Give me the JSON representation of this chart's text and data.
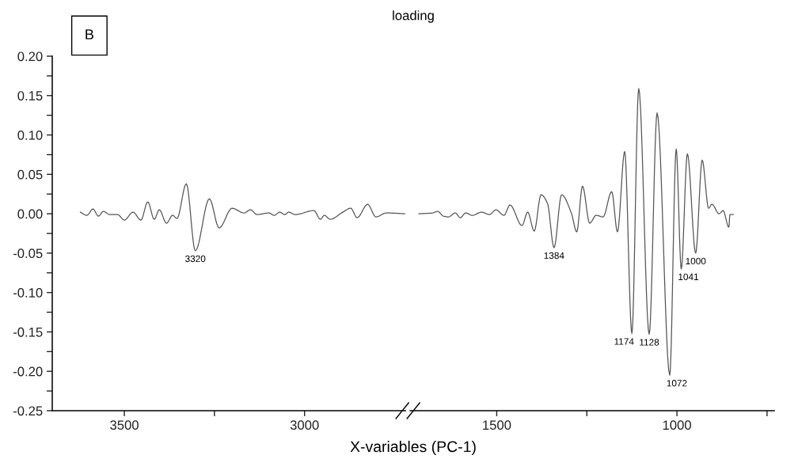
{
  "chart_data": [
    {
      "type": "line",
      "title": "loading",
      "xlabel": "X-variables (PC-1)",
      "annotations": [
        "B",
        {
          "text": "3320",
          "x": 3303,
          "y": -0.047
        }
      ],
      "xlim": [
        3700,
        2720
      ],
      "xticks": [
        3500,
        {
          "value": 3250,
          "label": null
        },
        3000
      ],
      "ylim": [
        -0.25,
        0.2
      ],
      "yticks": [
        {
          "value": 0.2,
          "label": "0.20"
        },
        {
          "value": 0.175,
          "label": null
        },
        {
          "value": 0.15,
          "label": "0.15"
        },
        {
          "value": 0.125,
          "label": null
        },
        {
          "value": 0.1,
          "label": "0.10"
        },
        {
          "value": 0.075,
          "label": null
        },
        {
          "value": 0.05,
          "label": "0.05"
        },
        {
          "value": 0.025,
          "label": null
        },
        {
          "value": 0,
          "label": "0.00"
        },
        {
          "value": -0.025,
          "label": null
        },
        {
          "value": -0.05,
          "label": "-0.05"
        },
        {
          "value": -0.075,
          "label": null
        },
        {
          "value": -0.1,
          "label": "-0.10"
        },
        {
          "value": -0.125,
          "label": null
        },
        {
          "value": -0.15,
          "label": "-0.15"
        },
        {
          "value": -0.175,
          "label": null
        },
        {
          "value": -0.2,
          "label": "-0.20"
        },
        {
          "value": -0.225,
          "label": null
        },
        {
          "value": -0.25,
          "label": "-0.25"
        }
      ],
      "series": [
        {
          "color": "#555555",
          "x": [
            3622,
            3604,
            3587,
            3572,
            3558,
            3541,
            3519,
            3500,
            3476,
            3454,
            3435,
            3417,
            3403,
            3383,
            3366,
            3354,
            3328,
            3303,
            3264,
            3237,
            3201,
            3168,
            3150,
            3132,
            3099,
            3084,
            3069,
            3055,
            3044,
            3026,
            2974,
            2956,
            2945,
            2929,
            2894,
            2872,
            2854,
            2825,
            2802,
            2773,
            2722
          ],
          "values": [
            0.002,
            -0.002,
            0.006,
            -0.003,
            0.003,
            -0.001,
            -0.001,
            -0.008,
            0.002,
            -0.008,
            0.015,
            -0.007,
            0.005,
            -0.012,
            -0.002,
            -0.006,
            0.038,
            -0.047,
            0.019,
            -0.018,
            0.007,
            0.001,
            0.005,
            -0.001,
            0.001,
            -0.002,
            0.002,
            -0.001,
            0.002,
            -0.001,
            0.004,
            -0.007,
            -0.002,
            -0.007,
            0.002,
            0.007,
            -0.005,
            0.012,
            -0.004,
            0.001,
            0.0
          ]
        }
      ]
    },
    {
      "type": "line",
      "tick_labels": "x",
      "annotations": [
        {
          "text": "1384",
          "x": 1341,
          "y": -0.043
        },
        {
          "text": "1174",
          "x": 1125,
          "y": -0.152
        },
        {
          "text": "1128",
          "x": 1077,
          "y": -0.153
        },
        {
          "text": "1072",
          "x": 1020,
          "y": -0.205
        },
        {
          "text": "1041",
          "x": 988,
          "y": -0.07
        },
        {
          "text": "1000",
          "x": 948,
          "y": -0.05
        }
      ],
      "xlim": [
        1740,
        730
      ],
      "xticks": [
        1500,
        {
          "value": 1250,
          "label": null
        },
        1000,
        {
          "value": 750,
          "label": null
        }
      ],
      "ylim": [
        -0.25,
        0.2
      ],
      "series": [
        {
          "color": "#555555",
          "x": [
            1716,
            1678,
            1664,
            1648,
            1634,
            1615,
            1601,
            1586,
            1568,
            1542,
            1520,
            1502,
            1480,
            1463,
            1430,
            1414,
            1396,
            1377,
            1359,
            1341,
            1320,
            1293,
            1278,
            1262,
            1242,
            1224,
            1205,
            1181,
            1165,
            1145,
            1125,
            1106,
            1077,
            1055,
            1020,
            1002,
            988,
            971,
            948,
            930,
            912,
            903,
            883,
            872,
            856,
            853,
            844
          ],
          "values": [
            0.0,
            0.001,
            0.003,
            -0.003,
            -0.004,
            0.001,
            -0.005,
            0.001,
            -0.002,
            0.002,
            -0.001,
            0.005,
            -0.002,
            0.011,
            -0.015,
            0.002,
            -0.022,
            0.024,
            0.013,
            -0.043,
            0.024,
            0.001,
            -0.023,
            0.035,
            -0.012,
            -0.002,
            -0.004,
            0.028,
            -0.023,
            0.079,
            -0.152,
            0.159,
            -0.153,
            0.128,
            -0.205,
            0.082,
            -0.07,
            0.076,
            -0.05,
            0.068,
            0.007,
            0.012,
            0.0,
            0.004,
            -0.017,
            -0.001,
            -0.001
          ]
        }
      ]
    }
  ]
}
